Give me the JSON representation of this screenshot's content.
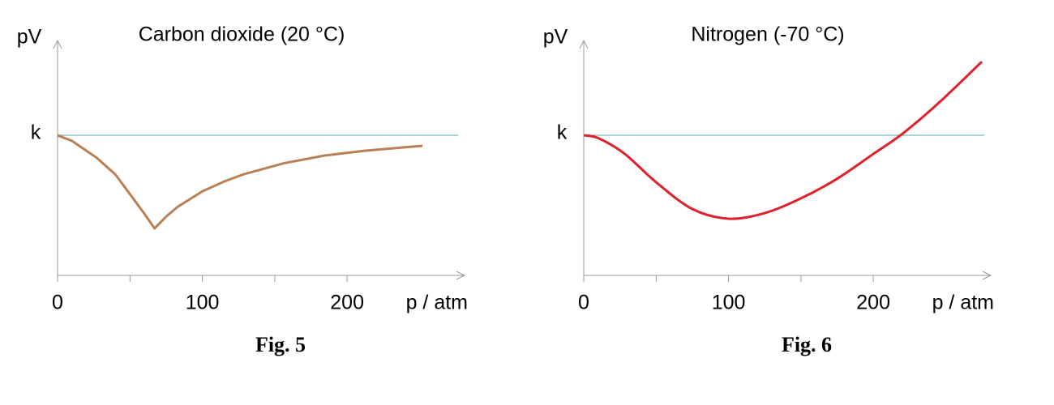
{
  "chart_data": [
    {
      "type": "line",
      "title": "Carbon dioxide (20 °C)",
      "ylabel": "pV",
      "xlabel": "p / atm",
      "caption": "Fig. 5",
      "x": [
        0,
        10,
        27,
        40,
        50,
        60,
        67,
        75,
        83,
        100,
        115,
        128,
        156,
        184,
        212,
        252
      ],
      "series": [
        {
          "color": "#b97f56",
          "values": [
            1,
            0.96,
            0.84,
            0.72,
            0.58,
            0.44,
            0.335,
            0.42,
            0.49,
            0.6,
            0.67,
            0.72,
            0.8,
            0.855,
            0.89,
            0.925
          ]
        }
      ],
      "smooth": false,
      "reference_color": "#48a8a8",
      "xlim": [
        0,
        280
      ],
      "xticks": [
        0,
        100,
        200
      ],
      "xminorticks": [
        50,
        150
      ],
      "ylim": [
        0,
        1.7
      ],
      "yticks": [
        {
          "value": 1,
          "label": "k"
        }
      ]
    },
    {
      "type": "line",
      "title": "Nitrogen (-70 °C)",
      "ylabel": "pV",
      "xlabel": "p / atm",
      "caption": "Fig. 6",
      "x": [
        0,
        10,
        28,
        50,
        75,
        100,
        125,
        150,
        175,
        200,
        220,
        245,
        275
      ],
      "series": [
        {
          "color": "#e0202a",
          "values": [
            1,
            0.98,
            0.87,
            0.665,
            0.474,
            0.405,
            0.445,
            0.55,
            0.69,
            0.867,
            1.01,
            1.23,
            1.526
          ]
        }
      ],
      "smooth": true,
      "reference_color": "#48a8a8",
      "xlim": [
        0,
        280
      ],
      "xticks": [
        0,
        100,
        200
      ],
      "xminorticks": [
        50,
        150
      ],
      "ylim": [
        0,
        1.7
      ],
      "yticks": [
        {
          "value": 1,
          "label": "k"
        }
      ]
    }
  ]
}
